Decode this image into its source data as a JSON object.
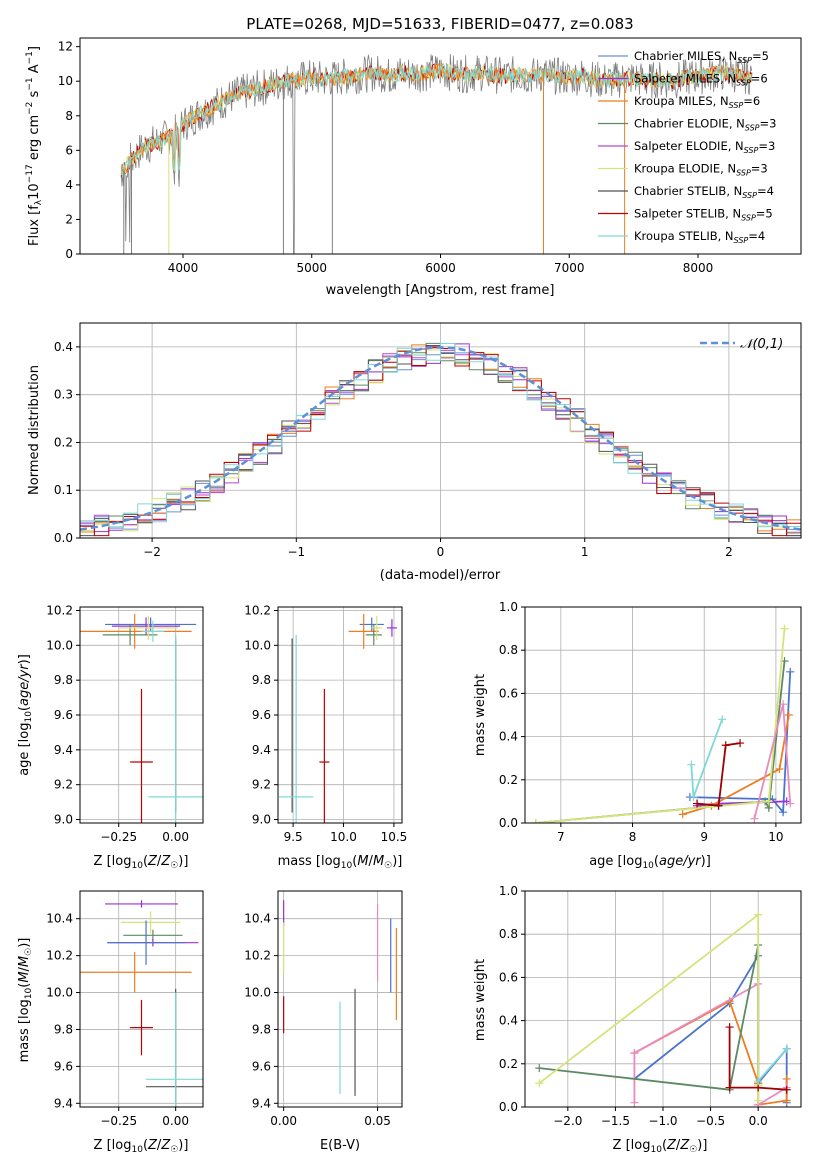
{
  "chart_data": [
    {
      "id": "spectrum",
      "type": "line",
      "title": "PLATE=0268, MJD=51633, FIBERID=0477, z=0.083",
      "xlabel": "wavelength [Angstrom, rest frame]",
      "ylabel": "Flux [f_λ10^-17 erg cm^-2 s^-1 A^-1]",
      "xlim": [
        3200,
        8800
      ],
      "ylim": [
        0,
        12.5
      ],
      "xticks": [
        4000,
        5000,
        6000,
        7000,
        8000
      ],
      "yticks": [
        0,
        2,
        4,
        6,
        8,
        10,
        12
      ],
      "data_color": "#808080",
      "spectrum_x": [
        3500,
        3600,
        3700,
        3800,
        3900,
        4000,
        4100,
        4200,
        4300,
        4400,
        4500,
        4600,
        4700,
        4800,
        4900,
        5000,
        5100,
        5200,
        5300,
        5400,
        5500,
        5600,
        5700,
        5800,
        5900,
        6000,
        6100,
        6200,
        6300,
        6400,
        6500,
        6600,
        6700,
        6800,
        6900,
        7000,
        7100,
        7200,
        7300,
        7400,
        7500,
        7600,
        7700,
        7800,
        7900,
        8000,
        8100,
        8200,
        8300,
        8400
      ],
      "spectrum_y": [
        4.5,
        5.5,
        6.2,
        6.5,
        6.8,
        7.5,
        8.0,
        8.4,
        8.8,
        9.2,
        9.4,
        9.6,
        9.8,
        10.0,
        10.1,
        10.2,
        10.1,
        10.2,
        10.3,
        10.4,
        10.5,
        10.3,
        10.5,
        10.4,
        10.5,
        10.6,
        10.5,
        10.4,
        10.5,
        10.4,
        10.3,
        10.4,
        10.3,
        10.4,
        10.3,
        10.2,
        10.3,
        10.1,
        10.0,
        10.1,
        10.2,
        10.0,
        10.1,
        10.0,
        10.2,
        10.3,
        10.4,
        10.5,
        10.4,
        10.3
      ],
      "legend": [
        "Chabrier MILES, N_SSP=5",
        "Salpeter MILES, N_SSP=6",
        "Kroupa MILES, N_SSP=6",
        "Chabrier ELODIE, N_SSP=3",
        "Salpeter ELODIE, N_SSP=3",
        "Kroupa ELODIE, N_SSP=3",
        "Chabrier STELIB, N_SSP=4",
        "Salpeter STELIB, N_SSP=5",
        "Kroupa STELIB, N_SSP=4"
      ],
      "legend_location": "right"
    },
    {
      "id": "residuals",
      "type": "step",
      "xlabel": "(data-model)/error",
      "ylabel": "Normed distribution",
      "xlim": [
        -2.5,
        2.5
      ],
      "ylim": [
        0,
        0.45
      ],
      "xticks": [
        -2,
        -1,
        0,
        1,
        2
      ],
      "yticks": [
        0.0,
        0.1,
        0.2,
        0.3,
        0.4
      ],
      "grid": true,
      "bin_width": 0.1,
      "legend": [
        "𝒩(0,1)"
      ],
      "legend_location": "top-right"
    },
    {
      "id": "age_vs_Z",
      "type": "errorbar",
      "xlabel": "Z [log10(Z/Z☉)]",
      "ylabel": "age  [log10(age/yr)]",
      "xlim": [
        -0.42,
        0.12
      ],
      "ylim": [
        8.98,
        10.22
      ],
      "xticks": [
        -0.25,
        0.0
      ],
      "yticks": [
        9.0,
        9.2,
        9.4,
        9.6,
        9.8,
        10.0,
        10.2
      ],
      "grid": true,
      "points": [
        {
          "color": "#4a73cc",
          "x": -0.11,
          "y": 10.12,
          "xerr": 0.2,
          "yerr": 0.04
        },
        {
          "color": "#9b30d9",
          "x": -0.13,
          "y": 10.11,
          "xerr": 0.15,
          "yerr": 0.05
        },
        {
          "color": "#ee7d21",
          "x": -0.18,
          "y": 10.08,
          "xerr": 0.25,
          "yerr": 0.1
        },
        {
          "color": "#5d8a64",
          "x": -0.2,
          "y": 10.06,
          "xerr": 0.12,
          "yerr": 0.06
        },
        {
          "color": "#d7e27a",
          "x": -0.12,
          "y": 10.1,
          "xerr": 0.13,
          "yerr": 0.07
        },
        {
          "color": "#555555",
          "x": 0.0,
          "y": 9.54,
          "xerr": 0.0,
          "yerr": 0.5
        },
        {
          "color": "#c00000",
          "x": -0.15,
          "y": 9.33,
          "xerr": 0.05,
          "yerr": 0.42
        },
        {
          "color": "#7fd8d8",
          "x": 0.0,
          "y": 9.13,
          "xerr": 0.12,
          "yerr": 0.93
        },
        {
          "color": "#7fd8d8",
          "x": -0.1,
          "y": 10.08,
          "xerr": 0.05,
          "yerr": 0.06
        }
      ]
    },
    {
      "id": "age_vs_mass",
      "type": "errorbar",
      "xlabel": "mass [log10(M/M☉)]",
      "xlim": [
        9.35,
        10.58
      ],
      "ylim": [
        8.98,
        10.22
      ],
      "xticks": [
        9.5,
        10.0,
        10.5
      ],
      "yticks": [
        9.0,
        9.2,
        9.4,
        9.6,
        9.8,
        10.0,
        10.2
      ],
      "grid": true,
      "points": [
        {
          "color": "#4a73cc",
          "x": 10.28,
          "y": 10.12,
          "xerr": 0.12,
          "yerr": 0.04
        },
        {
          "color": "#9b30d9",
          "x": 10.48,
          "y": 10.1,
          "xerr": 0.05,
          "yerr": 0.05
        },
        {
          "color": "#ee7d21",
          "x": 10.2,
          "y": 10.08,
          "xerr": 0.15,
          "yerr": 0.1
        },
        {
          "color": "#5d8a64",
          "x": 10.3,
          "y": 10.06,
          "xerr": 0.08,
          "yerr": 0.06
        },
        {
          "color": "#d7e27a",
          "x": 10.33,
          "y": 10.1,
          "xerr": 0.05,
          "yerr": 0.07
        },
        {
          "color": "#555555",
          "x": 9.49,
          "y": 9.54,
          "xerr": 0.0,
          "yerr": 0.5
        },
        {
          "color": "#c00000",
          "x": 9.81,
          "y": 9.33,
          "xerr": 0.05,
          "yerr": 0.42
        },
        {
          "color": "#7fd8d8",
          "x": 9.53,
          "y": 9.13,
          "xerr": 0.17,
          "yerr": 0.93
        }
      ]
    },
    {
      "id": "weight_vs_age",
      "type": "line",
      "xlabel": "age  [log10(age/yr)]",
      "ylabel": "mass weight",
      "xlim": [
        6.5,
        10.35
      ],
      "ylim": [
        0,
        1
      ],
      "xticks": [
        7,
        8,
        9,
        10
      ],
      "yticks": [
        0.0,
        0.2,
        0.4,
        0.6,
        0.8,
        1.0
      ],
      "grid": true,
      "series": [
        {
          "color": "#4a73cc",
          "x": [
            8.8,
            9.95,
            10.1,
            10.2
          ],
          "y": [
            0.12,
            0.11,
            0.05,
            0.7
          ]
        },
        {
          "color": "#9b30d9",
          "x": [
            8.9,
            9.2,
            10.15
          ],
          "y": [
            0.08,
            0.09,
            0.1
          ]
        },
        {
          "color": "#ee7d21",
          "x": [
            8.7,
            9.1,
            10.05,
            10.18
          ],
          "y": [
            0.04,
            0.08,
            0.25,
            0.5
          ]
        },
        {
          "color": "#5d8a64",
          "x": [
            6.65,
            9.85,
            9.9,
            10.12
          ],
          "y": [
            0.0,
            0.1,
            0.07,
            0.75
          ]
        },
        {
          "color": "#d7e27a",
          "x": [
            6.65,
            9.9,
            10.12
          ],
          "y": [
            0.0,
            0.1,
            0.9
          ]
        },
        {
          "color": "#e88ac0",
          "x": [
            9.7,
            10.1,
            10.2
          ],
          "y": [
            0.02,
            0.55,
            0.09
          ]
        },
        {
          "color": "#555555",
          "x": [
            8.9,
            9.2
          ],
          "y": [
            0.09,
            0.08
          ]
        },
        {
          "color": "#a00000",
          "x": [
            8.9,
            9.2,
            9.3,
            9.5
          ],
          "y": [
            0.09,
            0.08,
            0.36,
            0.37
          ]
        },
        {
          "color": "#7fd8d8",
          "x": [
            8.82,
            8.85,
            9.25
          ],
          "y": [
            0.27,
            0.12,
            0.48
          ]
        }
      ]
    },
    {
      "id": "mass_vs_Z",
      "type": "errorbar",
      "xlabel": "Z [log10(Z/Z☉)]",
      "ylabel": "mass [log10(M/M☉)]",
      "xlim": [
        -0.42,
        0.12
      ],
      "ylim": [
        9.38,
        10.55
      ],
      "xticks": [
        -0.25,
        0.0
      ],
      "yticks": [
        9.4,
        9.6,
        9.8,
        10.0,
        10.2,
        10.4
      ],
      "grid": true,
      "points": [
        {
          "color": "#9b30d9",
          "x": -0.15,
          "y": 10.48,
          "xerr": 0.16,
          "yerr": 0.02
        },
        {
          "color": "#d7e27a",
          "x": -0.11,
          "y": 10.38,
          "xerr": 0.13,
          "yerr": 0.06
        },
        {
          "color": "#5d8a64",
          "x": -0.1,
          "y": 10.31,
          "xerr": 0.13,
          "yerr": 0.03
        },
        {
          "color": "#9b30d9",
          "x": -0.1,
          "y": 10.27,
          "xerr": 0.2,
          "yerr": 0.02
        },
        {
          "color": "#4a73cc",
          "x": -0.13,
          "y": 10.27,
          "xerr": 0.17,
          "yerr": 0.12
        },
        {
          "color": "#ee7d21",
          "x": -0.18,
          "y": 10.11,
          "xerr": 0.25,
          "yerr": 0.11
        },
        {
          "color": "#c00000",
          "x": -0.15,
          "y": 9.81,
          "xerr": 0.05,
          "yerr": 0.15
        },
        {
          "color": "#555555",
          "x": 0.0,
          "y": 9.49,
          "xerr": 0.13,
          "yerr": 0.53
        },
        {
          "color": "#7fd8d8",
          "x": 0.0,
          "y": 9.53,
          "xerr": 0.13,
          "yerr": 0.47
        }
      ]
    },
    {
      "id": "mass_vs_ebv",
      "type": "errorbar",
      "xlabel": "E(B-V)",
      "xlim": [
        -0.003,
        0.063
      ],
      "ylim": [
        9.38,
        10.55
      ],
      "xticks": [
        0.0,
        0.05
      ],
      "yticks": [
        9.4,
        9.6,
        9.8,
        10.0,
        10.2,
        10.4
      ],
      "grid": true,
      "points": [
        {
          "color": "#9b30d9",
          "x": 0.0,
          "y": 10.43,
          "xerr": 0.0,
          "yerr": 0.07
        },
        {
          "color": "#d7e27a",
          "x": 0.0,
          "y": 10.24,
          "xerr": 0.0,
          "yerr": 0.14
        },
        {
          "color": "#c00000",
          "x": 0.0,
          "y": 9.88,
          "xerr": 0.0,
          "yerr": 0.1
        },
        {
          "color": "#7fd8d8",
          "x": 0.03,
          "y": 9.7,
          "xerr": 0.0,
          "yerr": 0.25
        },
        {
          "color": "#555555",
          "x": 0.038,
          "y": 9.73,
          "xerr": 0.0,
          "yerr": 0.29
        },
        {
          "color": "#e88ac0",
          "x": 0.05,
          "y": 10.27,
          "xerr": 0.0,
          "yerr": 0.21
        },
        {
          "color": "#4a73cc",
          "x": 0.057,
          "y": 10.2,
          "xerr": 0.0,
          "yerr": 0.2
        },
        {
          "color": "#ee7d21",
          "x": 0.06,
          "y": 10.1,
          "xerr": 0.0,
          "yerr": 0.25
        }
      ]
    },
    {
      "id": "weight_vs_Z",
      "type": "line",
      "xlabel": "Z [log10(Z/Z☉)]",
      "ylabel": "mass weight",
      "xlim": [
        -2.45,
        0.45
      ],
      "ylim": [
        0,
        1
      ],
      "xticks": [
        -2.0,
        -1.5,
        -1.0,
        -0.5,
        0.0
      ],
      "yticks": [
        0.0,
        0.2,
        0.4,
        0.6,
        0.8,
        1.0
      ],
      "grid": true,
      "series": [
        {
          "color": "#4a73cc",
          "x": [
            -1.3,
            -0.3,
            0.0,
            0.0,
            0.3,
            0.3
          ],
          "y": [
            0.13,
            0.48,
            0.7,
            0.11,
            0.27,
            0.02
          ]
        },
        {
          "color": "#ee7d21",
          "x": [
            -1.3,
            -0.3,
            0.0,
            0.0,
            0.3,
            0.3
          ],
          "y": [
            0.25,
            0.49,
            0.11,
            0.01,
            0.03,
            0.13
          ]
        },
        {
          "color": "#e88ac0",
          "x": [
            -1.3,
            -1.3,
            0.0,
            0.0,
            0.3
          ],
          "y": [
            0.02,
            0.25,
            0.57,
            0.01,
            0.09
          ]
        },
        {
          "color": "#5d8a64",
          "x": [
            -2.3,
            -0.3,
            0.0,
            0.0
          ],
          "y": [
            0.18,
            0.08,
            0.75,
            0.1
          ]
        },
        {
          "color": "#d7e27a",
          "x": [
            -2.3,
            0.0,
            0.0,
            0.0
          ],
          "y": [
            0.11,
            0.89,
            0.1,
            0.03
          ]
        },
        {
          "color": "#a00000",
          "x": [
            -0.3,
            -0.3,
            0.0,
            0.3
          ],
          "y": [
            0.37,
            0.09,
            0.09,
            0.08
          ]
        },
        {
          "color": "#7fd8d8",
          "x": [
            0.0,
            0.3
          ],
          "y": [
            0.12,
            0.27
          ]
        }
      ]
    }
  ],
  "colors": {
    "chabrier_miles": "#6d8fd8",
    "salpeter_miles": "#9b30d9",
    "kroupa_miles": "#ee7d21",
    "chabrier_elodie": "#5d8a64",
    "salpeter_elodie": "#b44bd0",
    "kroupa_elodie": "#d7e27a",
    "chabrier_stelib": "#555555",
    "salpeter_stelib": "#c00000",
    "kroupa_stelib": "#7fd8d8",
    "normal_curve": "#5f8fd8"
  }
}
